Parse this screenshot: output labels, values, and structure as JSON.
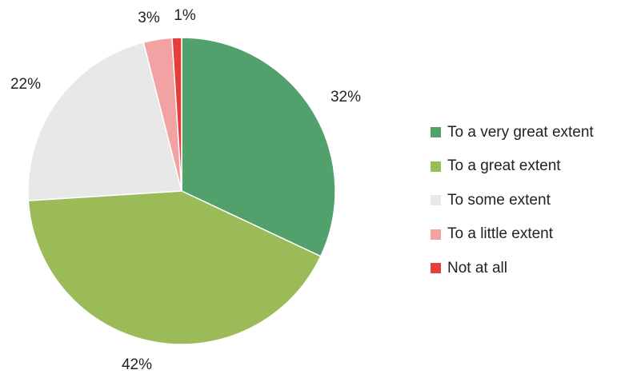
{
  "chart_data": {
    "type": "pie",
    "categories": [
      "To a very great extent",
      "To a great extent",
      "To some extent",
      "To a little extent",
      "Not at all"
    ],
    "values": [
      32,
      42,
      22,
      3,
      1
    ],
    "labels": [
      "32%",
      "42%",
      "22%",
      "3%",
      "1%"
    ],
    "colors": [
      "#52A06C",
      "#9BBB59",
      "#E8E8E8",
      "#F2A2A2",
      "#E3403B"
    ],
    "start_angle_deg": 0,
    "direction": "clockwise",
    "legend_position": "right"
  }
}
